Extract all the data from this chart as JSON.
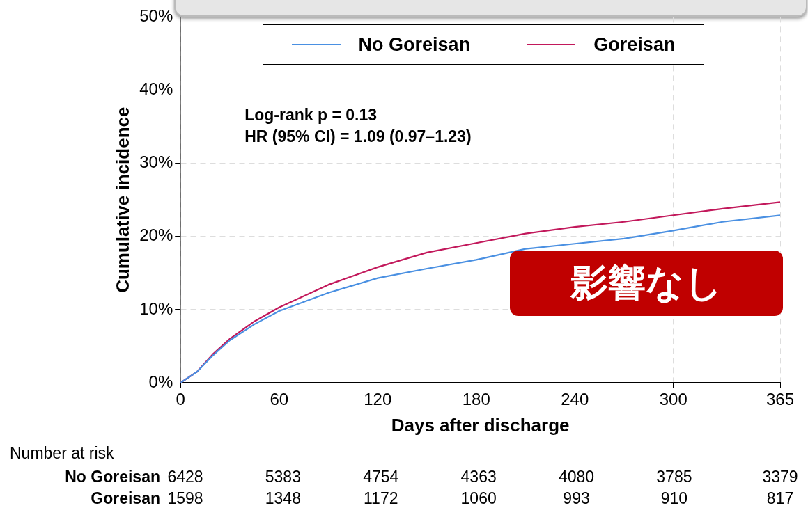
{
  "chart_data": {
    "type": "line",
    "xlabel": "Days after discharge",
    "ylabel": "Cumulative incidence",
    "xlim": [
      0,
      365
    ],
    "xticks": [
      0,
      60,
      120,
      180,
      240,
      300,
      365
    ],
    "ylim": [
      0,
      50
    ],
    "yticks": [
      {
        "value": 0,
        "label": "0%"
      },
      {
        "value": 10,
        "label": "10%"
      },
      {
        "value": 20,
        "label": "20%"
      },
      {
        "value": 30,
        "label": "30%"
      },
      {
        "value": 40,
        "label": "40%"
      },
      {
        "value": 50,
        "label": "50%"
      }
    ],
    "grid": true,
    "legend": "top",
    "marker": "none",
    "line_style": "solid",
    "series": [
      {
        "name": "No Goreisan",
        "color": "#4a90e2",
        "x": [
          0,
          10,
          20,
          30,
          45,
          60,
          90,
          120,
          150,
          180,
          210,
          240,
          270,
          300,
          330,
          365
        ],
        "values": [
          0,
          1.5,
          3.8,
          5.8,
          8,
          9.8,
          12.3,
          14.3,
          15.6,
          16.8,
          18.3,
          19,
          19.7,
          20.8,
          22,
          22.9
        ]
      },
      {
        "name": "Goreisan",
        "color": "#c2185b",
        "x": [
          0,
          10,
          20,
          30,
          45,
          60,
          90,
          120,
          150,
          180,
          210,
          240,
          270,
          300,
          330,
          365
        ],
        "values": [
          0,
          1.5,
          4,
          6,
          8.4,
          10.3,
          13.4,
          15.8,
          17.8,
          19.1,
          20.4,
          21.3,
          22,
          22.9,
          23.8,
          24.7
        ]
      }
    ],
    "annotations": [
      "Log-rank p = 0.13",
      "HR (95% CI) = 1.09 (0.97–1.23)",
      "影響なし",
      "Number at risk",
      "6428",
      "5383",
      "4754",
      "4363",
      "4080",
      "3785",
      "3379",
      "1598",
      "1348",
      "1172",
      "1060",
      "993",
      "910",
      "817"
    ]
  }
}
